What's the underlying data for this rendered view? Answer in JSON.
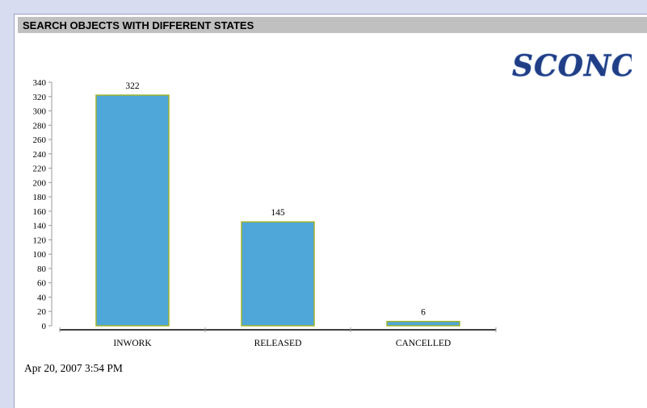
{
  "page": {
    "title": "SEARCH OBJECTS WITH DIFFERENT STATES",
    "logo_text": "SCONCE",
    "timestamp": "Apr 20, 2007 3:54 PM"
  },
  "colors": {
    "bar_fill": "#4fa6d8",
    "bar_border": "#a0b42c",
    "background": "#d8dcf0",
    "title_bar": "#c0c0c0",
    "logo_color": "#1f3e86"
  },
  "chart_data": {
    "type": "bar",
    "categories": [
      "INWORK",
      "RELEASED",
      "CANCELLED"
    ],
    "values": [
      322,
      145,
      6
    ],
    "data_labels": [
      "322",
      "145",
      "6"
    ],
    "ylim": [
      0,
      340
    ],
    "yticks": [
      0,
      20,
      40,
      60,
      80,
      100,
      120,
      140,
      160,
      180,
      200,
      220,
      240,
      260,
      280,
      300,
      320,
      340
    ],
    "grid": false,
    "legend": "none"
  }
}
